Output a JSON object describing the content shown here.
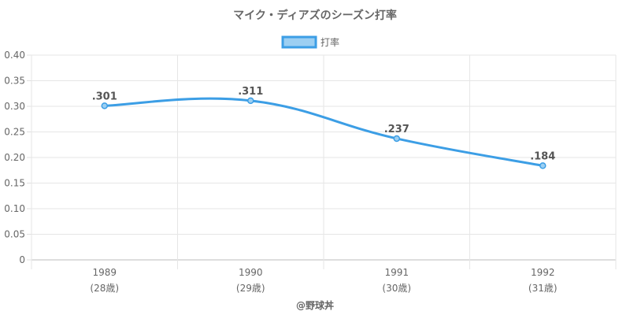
{
  "chart_data": {
    "type": "line",
    "title": "マイク・ディアズのシーズン打率",
    "categories": [
      "1989",
      "1990",
      "1991",
      "1992"
    ],
    "category_sublabels": [
      "(28歳)",
      "(29歳)",
      "(30歳)",
      "(31歳)"
    ],
    "series": [
      {
        "name": "打率",
        "values": [
          0.301,
          0.311,
          0.237,
          0.184
        ],
        "data_labels": [
          ".301",
          ".311",
          ".237",
          ".184"
        ],
        "color": "#3c9ee5",
        "fill": "#9ccff2"
      }
    ],
    "ylim": [
      0,
      0.4
    ],
    "yticks": [
      "0",
      "0.05",
      "0.10",
      "0.15",
      "0.20",
      "0.25",
      "0.30",
      "0.35",
      "0.40"
    ],
    "grid": true,
    "legend": "top",
    "xlabel": "",
    "ylabel": ""
  },
  "credit": "@野球丼"
}
